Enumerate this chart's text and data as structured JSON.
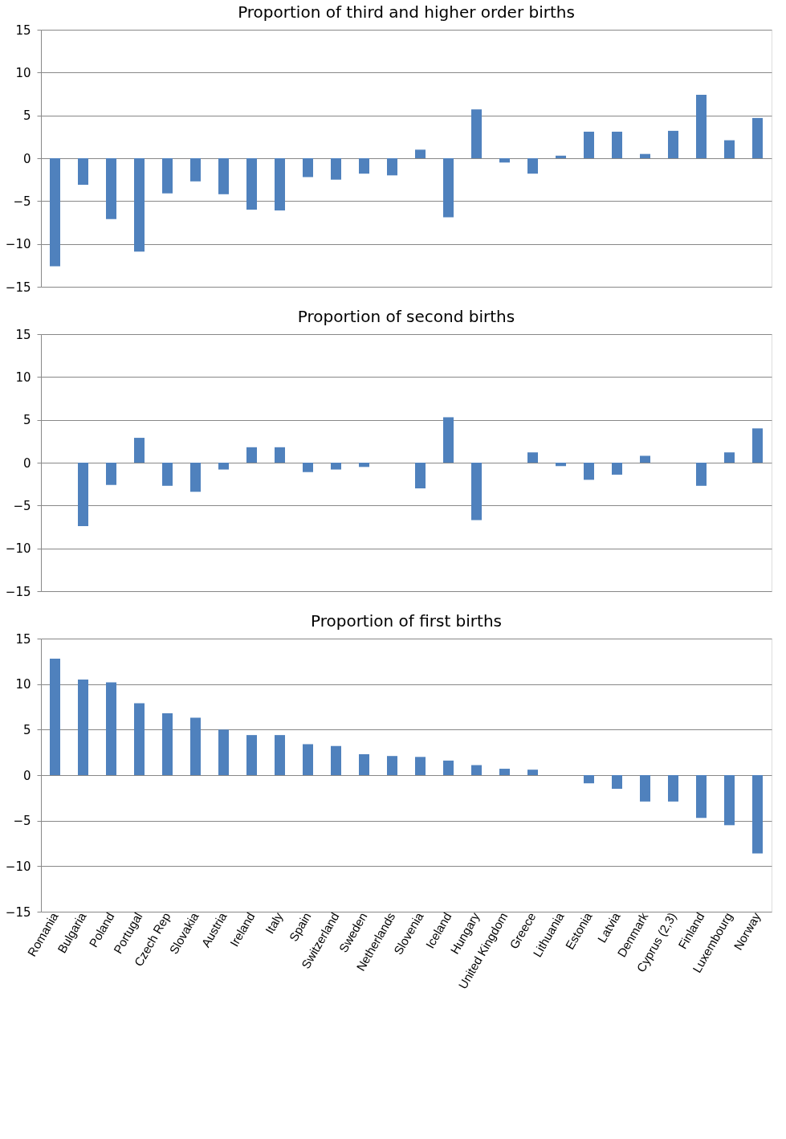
{
  "chart_data": [
    {
      "type": "bar",
      "title": "Proportion of third and higher order births",
      "categories": [
        null,
        null,
        null,
        null,
        null,
        null,
        null,
        null,
        null,
        null,
        null,
        null,
        null,
        null,
        null,
        null,
        null,
        null,
        null,
        null,
        null,
        null,
        null,
        null,
        null,
        null
      ],
      "values": [
        -12.6,
        -3.1,
        -7.1,
        -10.9,
        -4.1,
        -2.7,
        -4.2,
        -6.0,
        -6.1,
        -2.2,
        -2.5,
        -1.8,
        -2.0,
        1.0,
        -6.9,
        5.7,
        -0.5,
        -1.8,
        0.3,
        3.1,
        3.1,
        0.5,
        3.2,
        7.4,
        2.1,
        4.7
      ],
      "color": "#4f81bd",
      "ylim": [
        -15,
        15
      ],
      "yticks": [
        -15,
        -10,
        -5,
        0,
        5,
        10,
        15
      ],
      "grid": "y",
      "tick_labels": "y"
    },
    {
      "type": "bar",
      "title": "Proportion of second births",
      "categories": [
        null,
        null,
        null,
        null,
        null,
        null,
        null,
        null,
        null,
        null,
        null,
        null,
        null,
        null,
        null,
        null,
        null,
        null,
        null,
        null,
        null,
        null,
        null,
        null,
        null,
        null
      ],
      "values": [
        0,
        -7.4,
        -2.6,
        2.9,
        -2.7,
        -3.4,
        -0.8,
        1.8,
        1.8,
        -1.1,
        -0.8,
        -0.5,
        0,
        -3.0,
        5.3,
        -6.7,
        0,
        1.2,
        -0.4,
        -2.0,
        -1.4,
        0.8,
        0,
        -2.7,
        1.2,
        4.0
      ],
      "color": "#4f81bd",
      "ylim": [
        -15,
        15
      ],
      "yticks": [
        -15,
        -10,
        -5,
        0,
        5,
        10,
        15
      ],
      "grid": "y",
      "tick_labels": "y"
    },
    {
      "type": "bar",
      "title": "Proportion of first births",
      "categories": [
        "Romania",
        "Bulgaria",
        "Poland",
        "Portugal",
        "Czech Rep",
        "Slovakia",
        "Austria",
        "Ireland",
        "Italy",
        "Spain",
        "Switzerland",
        "Sweden",
        "Netherlands",
        "Slovenia",
        "Iceland",
        "Hungary",
        "United Kingdom",
        "Greece",
        "Lithuania",
        "Estonia",
        "Latvia",
        "Denmark",
        "Cyprus (2,3)",
        "Finland",
        "Luxembourg",
        "Norway"
      ],
      "values": [
        12.8,
        10.5,
        10.2,
        7.9,
        6.8,
        6.3,
        5.0,
        4.4,
        4.4,
        3.4,
        3.2,
        2.3,
        2.1,
        2.0,
        1.6,
        1.1,
        0.7,
        0.6,
        0,
        -0.9,
        -1.5,
        -2.9,
        -2.9,
        -4.7,
        -5.5,
        -8.6
      ],
      "color": "#4f81bd",
      "ylim": [
        -15,
        15
      ],
      "yticks": [
        -15,
        -10,
        -5,
        0,
        5,
        10,
        15
      ],
      "grid": "y"
    }
  ]
}
